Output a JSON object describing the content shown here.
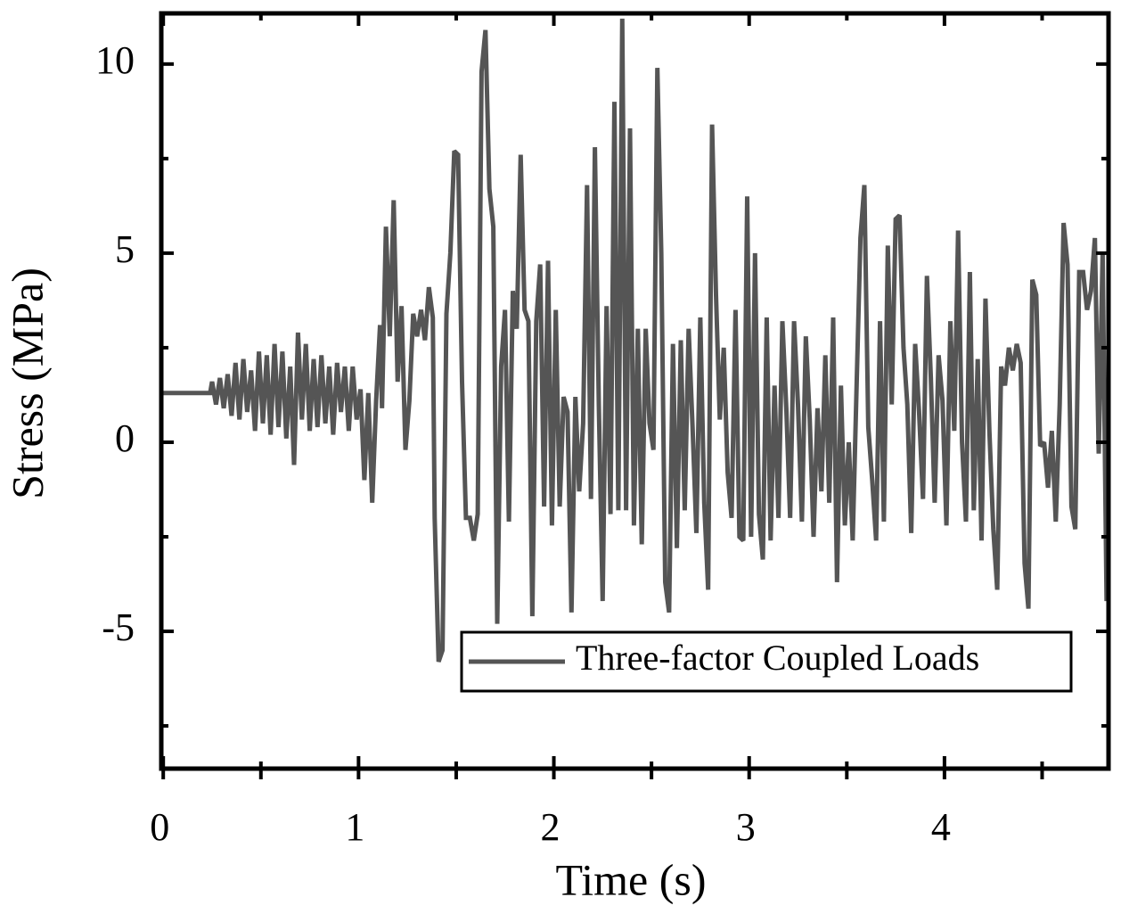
{
  "chart_data": {
    "type": "line",
    "xlabel": "Time (s)",
    "ylabel": "Stress (MPa)",
    "x": [
      0,
      0.24,
      0.25,
      0.27,
      0.29,
      0.31,
      0.33,
      0.35,
      0.37,
      0.39,
      0.41,
      0.43,
      0.45,
      0.47,
      0.49,
      0.51,
      0.53,
      0.55,
      0.57,
      0.59,
      0.61,
      0.63,
      0.65,
      0.67,
      0.69,
      0.71,
      0.73,
      0.75,
      0.77,
      0.79,
      0.81,
      0.83,
      0.85,
      0.87,
      0.89,
      0.91,
      0.93,
      0.95,
      0.97,
      0.99,
      1.01,
      1.03,
      1.05,
      1.07,
      1.09,
      1.11,
      1.12,
      1.14,
      1.16,
      1.18,
      1.2,
      1.22,
      1.24,
      1.26,
      1.28,
      1.3,
      1.32,
      1.34,
      1.36,
      1.38,
      1.39,
      1.41,
      1.43,
      1.45,
      1.47,
      1.49,
      1.51,
      1.53,
      1.55,
      1.57,
      1.59,
      1.61,
      1.63,
      1.65,
      1.67,
      1.69,
      1.71,
      1.73,
      1.75,
      1.77,
      1.79,
      1.81,
      1.83,
      1.85,
      1.87,
      1.89,
      1.91,
      1.93,
      1.95,
      1.97,
      1.99,
      2.01,
      2.03,
      2.05,
      2.07,
      2.09,
      2.11,
      2.13,
      2.15,
      2.17,
      2.19,
      2.21,
      2.23,
      2.25,
      2.27,
      2.29,
      2.31,
      2.33,
      2.35,
      2.37,
      2.39,
      2.41,
      2.43,
      2.45,
      2.47,
      2.49,
      2.51,
      2.53,
      2.55,
      2.57,
      2.59,
      2.61,
      2.63,
      2.65,
      2.67,
      2.69,
      2.71,
      2.73,
      2.75,
      2.77,
      2.79,
      2.81,
      2.83,
      2.85,
      2.87,
      2.89,
      2.91,
      2.93,
      2.95,
      2.97,
      2.99,
      3.01,
      3.03,
      3.05,
      3.07,
      3.09,
      3.11,
      3.13,
      3.15,
      3.17,
      3.19,
      3.21,
      3.23,
      3.25,
      3.27,
      3.29,
      3.31,
      3.33,
      3.35,
      3.37,
      3.39,
      3.41,
      3.43,
      3.45,
      3.47,
      3.49,
      3.51,
      3.53,
      3.55,
      3.57,
      3.59,
      3.61,
      3.63,
      3.65,
      3.67,
      3.69,
      3.71,
      3.73,
      3.75,
      3.77,
      3.79,
      3.81,
      3.83,
      3.85,
      3.87,
      3.89,
      3.91,
      3.93,
      3.95,
      3.97,
      3.99,
      4.01,
      4.03,
      4.05,
      4.07,
      4.09,
      4.11,
      4.13,
      4.15,
      4.17,
      4.19,
      4.21,
      4.23,
      4.25,
      4.27,
      4.29,
      4.31,
      4.33,
      4.35,
      4.37,
      4.39,
      4.41,
      4.43,
      4.45,
      4.47,
      4.49,
      4.51,
      4.53,
      4.55,
      4.57,
      4.59,
      4.61,
      4.63,
      4.65,
      4.67,
      4.69,
      4.71,
      4.73,
      4.75,
      4.77,
      4.79,
      4.81,
      4.83
    ],
    "series": [
      {
        "name": "Three-factor Coupled Loads",
        "color": "#555555",
        "values": [
          1.3,
          1.3,
          1.6,
          1.0,
          1.7,
          0.9,
          1.8,
          0.7,
          2.1,
          0.6,
          2.2,
          0.8,
          1.9,
          0.3,
          2.4,
          0.5,
          2.3,
          0.2,
          2.6,
          0.4,
          2.4,
          0.1,
          2.0,
          -0.6,
          2.9,
          0.6,
          2.6,
          0.3,
          2.2,
          0.4,
          2.3,
          0.5,
          2.0,
          0.2,
          2.1,
          0.8,
          2.0,
          0.3,
          2.0,
          0.6,
          1.4,
          -1.0,
          1.3,
          -1.6,
          1.1,
          3.1,
          0.9,
          5.7,
          2.8,
          6.4,
          1.6,
          3.6,
          -0.2,
          1.1,
          3.4,
          2.8,
          3.5,
          2.7,
          4.1,
          3.3,
          -2.0,
          -5.8,
          -5.5,
          3.4,
          5.0,
          7.7,
          7.6,
          1.6,
          -2.0,
          -2.0,
          -2.6,
          -1.9,
          9.8,
          10.9,
          6.7,
          5.7,
          -4.8,
          2.0,
          3.5,
          -2.1,
          4.0,
          3.0,
          7.6,
          3.5,
          3.2,
          -4.6,
          3.2,
          4.7,
          -1.7,
          4.8,
          -2.2,
          3.5,
          -1.7,
          1.2,
          0.8,
          -4.5,
          1.2,
          -1.3,
          0.5,
          6.8,
          -1.5,
          7.8,
          1.0,
          -4.2,
          3.6,
          -1.9,
          9.0,
          -1.8,
          11.2,
          -1.8,
          8.3,
          -2.2,
          3.0,
          -2.7,
          3.0,
          0.5,
          -0.2,
          9.9,
          5.0,
          -3.7,
          -4.5,
          2.6,
          -2.8,
          2.7,
          -1.8,
          3.0,
          0.4,
          -2.4,
          3.3,
          -1.6,
          -3.9,
          8.4,
          3.9,
          0.6,
          2.5,
          -0.8,
          -2.0,
          3.5,
          -2.5,
          -2.6,
          6.5,
          -2.5,
          5.0,
          -1.9,
          -3.1,
          3.3,
          -2.6,
          1.5,
          -2.0,
          3.2,
          0.9,
          -2.0,
          3.2,
          1.0,
          -2.1,
          2.8,
          0.6,
          -2.5,
          0.9,
          -1.3,
          2.3,
          -1.6,
          3.3,
          -3.7,
          1.5,
          -2.2,
          0.0,
          -2.6,
          1.5,
          5.4,
          6.8,
          0.4,
          -1.0,
          -2.6,
          3.2,
          -2.1,
          5.2,
          1.0,
          5.9,
          6.0,
          2.5,
          1.0,
          -2.4,
          2.6,
          0.8,
          -1.5,
          4.4,
          1.7,
          -1.6,
          2.3,
          1.1,
          -2.2,
          3.2,
          0.3,
          5.6,
          0.0,
          -2.1,
          4.5,
          -1.8,
          2.2,
          -2.6,
          3.8,
          0.3,
          -2.3,
          -3.9,
          2.0,
          1.5,
          2.5,
          1.9,
          2.6,
          2.1,
          -3.2,
          -4.4,
          4.3,
          3.9,
          -0.1,
          0.0,
          -1.2,
          0.3,
          -2.1,
          1.0,
          5.8,
          4.7,
          -1.7,
          -2.3,
          4.5,
          4.5,
          3.5,
          4.0,
          5.4,
          -0.3,
          5.0,
          -4.2
        ]
      }
    ],
    "xlim": [
      -0.01,
      4.84
    ],
    "ylim": [
      -8.63,
      11.34
    ],
    "xticks": [
      0,
      1,
      2,
      3,
      4
    ],
    "yticks": [
      -5,
      0,
      5,
      10
    ],
    "xminorticks": [
      0.5,
      1.5,
      2.5,
      3.5,
      4.5
    ],
    "yminorticks": [
      -7.5,
      -2.5,
      2.5,
      7.5
    ],
    "grid": false,
    "legend": "lower right"
  }
}
